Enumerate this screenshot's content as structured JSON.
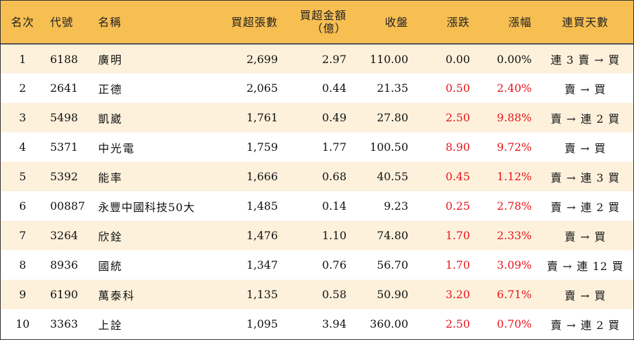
{
  "headers": {
    "rank": "名次",
    "code": "代號",
    "name": "名稱",
    "buy_lots": "買超張數",
    "buy_amount_line1": "買超金額",
    "buy_amount_line2": "（億）",
    "close": "收盤",
    "change": "漲跌",
    "pct": "漲幅",
    "days": "連買天數"
  },
  "rows": [
    {
      "rank": "1",
      "code": "6188",
      "name": "廣明",
      "lots": "2,699",
      "amount": "2.97",
      "close": "110.00",
      "change": "0.00",
      "pct": "0.00%",
      "days": "連 3 賣 → 買",
      "up": false
    },
    {
      "rank": "2",
      "code": "2641",
      "name": "正德",
      "lots": "2,065",
      "amount": "0.44",
      "close": "21.35",
      "change": "0.50",
      "pct": "2.40%",
      "days": "賣 → 買",
      "up": true
    },
    {
      "rank": "3",
      "code": "5498",
      "name": "凱崴",
      "lots": "1,761",
      "amount": "0.49",
      "close": "27.80",
      "change": "2.50",
      "pct": "9.88%",
      "days": "賣 → 連 2 買",
      "up": true
    },
    {
      "rank": "4",
      "code": "5371",
      "name": "中光電",
      "lots": "1,759",
      "amount": "1.77",
      "close": "100.50",
      "change": "8.90",
      "pct": "9.72%",
      "days": "賣 → 買",
      "up": true
    },
    {
      "rank": "5",
      "code": "5392",
      "name": "能率",
      "lots": "1,666",
      "amount": "0.68",
      "close": "40.55",
      "change": "0.45",
      "pct": "1.12%",
      "days": "賣 → 連 3 買",
      "up": true
    },
    {
      "rank": "6",
      "code": "00887",
      "name": "永豐中國科技50大",
      "lots": "1,485",
      "amount": "0.14",
      "close": "9.23",
      "change": "0.25",
      "pct": "2.78%",
      "days": "賣 → 連 2 買",
      "up": true
    },
    {
      "rank": "7",
      "code": "3264",
      "name": "欣銓",
      "lots": "1,476",
      "amount": "1.10",
      "close": "74.80",
      "change": "1.70",
      "pct": "2.33%",
      "days": "賣 → 買",
      "up": true
    },
    {
      "rank": "8",
      "code": "8936",
      "name": "國統",
      "lots": "1,347",
      "amount": "0.76",
      "close": "56.70",
      "change": "1.70",
      "pct": "3.09%",
      "days": "賣 → 連 12 買",
      "up": true
    },
    {
      "rank": "9",
      "code": "6190",
      "name": "萬泰科",
      "lots": "1,135",
      "amount": "0.58",
      "close": "50.90",
      "change": "3.20",
      "pct": "6.71%",
      "days": "賣 → 買",
      "up": true
    },
    {
      "rank": "10",
      "code": "3363",
      "name": "上詮",
      "lots": "1,095",
      "amount": "3.94",
      "close": "360.00",
      "change": "2.50",
      "pct": "0.70%",
      "days": "賣 → 連 2 買",
      "up": true
    }
  ]
}
